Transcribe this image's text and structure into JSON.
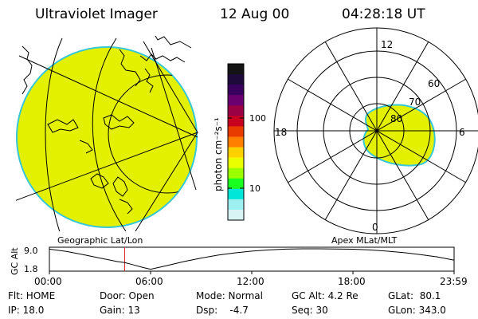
{
  "header": {
    "title": "Ultraviolet Imager",
    "date": "12 Aug 00",
    "time": "04:28:18 UT"
  },
  "colorbar": {
    "unit_label": "photon cm⁻²s⁻¹",
    "ticks": [
      "100",
      "10"
    ],
    "colors": [
      "#141414",
      "#1f0b3b",
      "#3a005e",
      "#6a0070",
      "#9a0044",
      "#c80020",
      "#e83b00",
      "#ff7f00",
      "#ffd000",
      "#eaff00",
      "#9cff00",
      "#19ff20",
      "#00e6d8",
      "#9ef0f0",
      "#d9f4f4"
    ]
  },
  "geo_map": {
    "label": "Geographic Lat/Lon",
    "fill_color": "#e3f100",
    "edge_color": "#38c7d7"
  },
  "polar_plot": {
    "label": "Apex MLat/MLT",
    "mlt_labels": {
      "top": "12",
      "bottom": "0",
      "left": "18",
      "right": "6"
    },
    "lat_labels": [
      "60",
      "70",
      "80"
    ],
    "fill_color": "#e3f100"
  },
  "altitude_plot": {
    "y_title": "GC Alt",
    "y_ticks": [
      "9.0",
      "1.8"
    ],
    "x_ticks": [
      "00:00",
      "06:00",
      "12:00",
      "18:00",
      "23:59"
    ],
    "marker_time": "04:28",
    "marker_color": "#e0282b",
    "chart_data": {
      "type": "line",
      "x_unit": "UT hours",
      "y_unit": "GC Alt (Re)",
      "ylim": [
        1.8,
        9.0
      ],
      "xlim": [
        0,
        24
      ],
      "x": [
        0,
        1,
        2,
        3,
        4,
        4.47,
        5,
        5.5,
        6,
        7,
        8,
        9,
        10,
        11,
        12,
        13,
        14,
        15,
        16,
        17,
        18,
        19,
        20,
        21,
        22,
        23,
        23.98
      ],
      "values": [
        8.9,
        8.1,
        7.0,
        5.8,
        4.6,
        4.2,
        3.4,
        2.6,
        1.9,
        3.2,
        4.6,
        5.8,
        6.8,
        7.6,
        8.2,
        8.6,
        8.9,
        9.0,
        9.0,
        8.95,
        8.85,
        8.6,
        8.2,
        7.7,
        7.0,
        6.2,
        5.1
      ]
    }
  },
  "status": {
    "flt": "Flt: HOME",
    "ip": "IP: 18.0",
    "door": "Door: Open",
    "gain": "Gain: 13",
    "mode": "Mode: Normal",
    "dsp": "Dsp:    -4.7",
    "gc_alt": "GC Alt: 4.2 Re",
    "seq": "Seq: 30",
    "glat": "GLat:  80.1",
    "glon": "GLon: 343.0"
  }
}
